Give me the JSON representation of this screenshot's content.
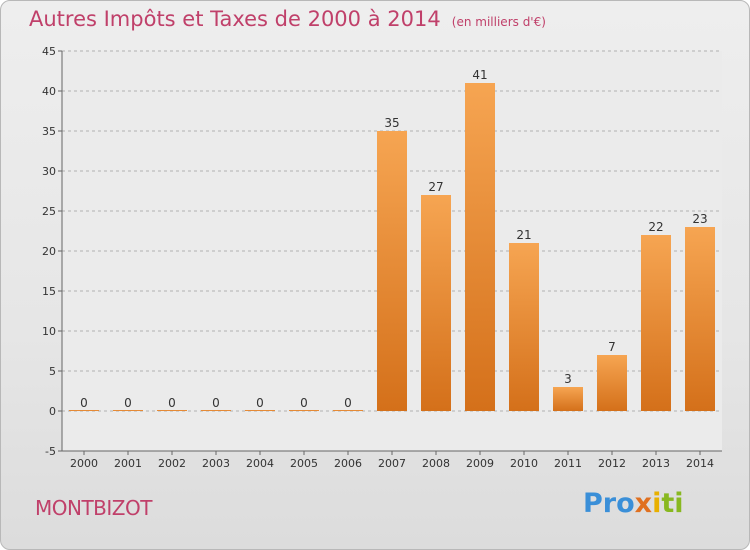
{
  "header": {
    "title": "Autres Impôts et Taxes de 2000 à 2014",
    "unit": "(en milliers d'€)"
  },
  "footer": {
    "commune": "MONTBIZOT",
    "logo": [
      "Pro",
      "x",
      "i",
      "ti"
    ]
  },
  "colors": {
    "bar_top": "#f6a552",
    "bar_bottom": "#d4701a",
    "title": "#c0406a",
    "grid": "#b0b0b0"
  },
  "chart_data": {
    "type": "bar",
    "title": "Autres Impôts et Taxes de 2000 à 2014",
    "subtitle": "(en milliers d'€)",
    "categories": [
      "2000",
      "2001",
      "2002",
      "2003",
      "2004",
      "2005",
      "2006",
      "2007",
      "2008",
      "2009",
      "2010",
      "2011",
      "2012",
      "2013",
      "2014"
    ],
    "values": [
      0,
      0,
      0,
      0,
      0,
      0,
      0,
      35,
      27,
      41,
      21,
      3,
      7,
      22,
      23
    ],
    "ylim": [
      -5,
      45
    ],
    "yticks": [
      -5,
      0,
      5,
      10,
      15,
      20,
      25,
      30,
      35,
      40,
      45
    ],
    "grid": "horizontal dashed",
    "legend": "none"
  }
}
